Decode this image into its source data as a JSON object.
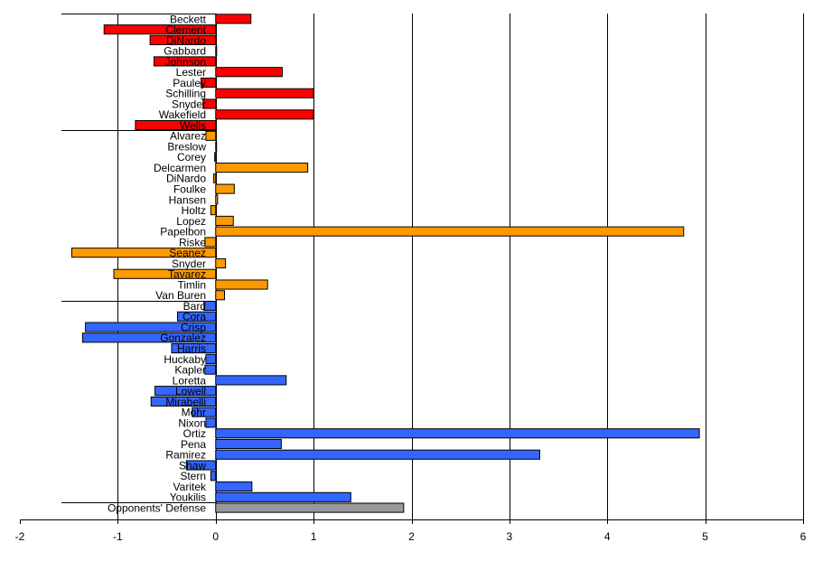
{
  "chart_data": {
    "type": "bar",
    "orientation": "horizontal",
    "title": "",
    "xlabel": "",
    "ylabel": "",
    "xlim": [
      -2,
      6
    ],
    "xticks": [
      -2,
      -1,
      0,
      1,
      2,
      3,
      4,
      5,
      6
    ],
    "grid": "vertical",
    "legend": "none",
    "colors": {
      "red": "#ff0000",
      "orange": "#ff9900",
      "blue": "#3366ff",
      "gray": "#999999"
    },
    "groups": [
      {
        "color": "red",
        "bars": [
          {
            "label": "Beckett",
            "value": 0.36
          },
          {
            "label": "Clement",
            "value": -1.14
          },
          {
            "label": "DiNardo",
            "value": -0.67
          },
          {
            "label": "Gabbard",
            "value": 0.01
          },
          {
            "label": "Johnson",
            "value": -0.63
          },
          {
            "label": "Lester",
            "value": 0.68
          },
          {
            "label": "Pauley",
            "value": -0.15
          },
          {
            "label": "Schilling",
            "value": 1.0
          },
          {
            "label": "Snyder",
            "value": -0.13
          },
          {
            "label": "Wakefield",
            "value": 1.0
          },
          {
            "label": "Wells",
            "value": -0.82
          }
        ]
      },
      {
        "color": "orange",
        "bars": [
          {
            "label": "Alvarez",
            "value": -0.1
          },
          {
            "label": "Breslow",
            "value": 0.0
          },
          {
            "label": "Corey",
            "value": -0.01
          },
          {
            "label": "Delcarmen",
            "value": 0.94
          },
          {
            "label": "DiNardo",
            "value": -0.02
          },
          {
            "label": "Foulke",
            "value": 0.19
          },
          {
            "label": "Hansen",
            "value": 0.02
          },
          {
            "label": "Holtz",
            "value": -0.05
          },
          {
            "label": "Lopez",
            "value": 0.18
          },
          {
            "label": "Papelbon",
            "value": 4.78
          },
          {
            "label": "Riske",
            "value": -0.11
          },
          {
            "label": "Seanez",
            "value": -1.47
          },
          {
            "label": "Snyder",
            "value": 0.1
          },
          {
            "label": "Tavarez",
            "value": -1.04
          },
          {
            "label": "Timlin",
            "value": 0.53
          },
          {
            "label": "Van Buren",
            "value": 0.09
          }
        ]
      },
      {
        "color": "blue",
        "bars": [
          {
            "label": "Bard",
            "value": -0.12
          },
          {
            "label": "Cora",
            "value": -0.39
          },
          {
            "label": "Crisp",
            "value": -1.33
          },
          {
            "label": "Gonzalez",
            "value": -1.36
          },
          {
            "label": "Harris",
            "value": -0.45
          },
          {
            "label": "Huckaby",
            "value": -0.1
          },
          {
            "label": "Kapler",
            "value": -0.11
          },
          {
            "label": "Loretta",
            "value": 0.72
          },
          {
            "label": "Lowell",
            "value": -0.62
          },
          {
            "label": "Mirabelli",
            "value": -0.66
          },
          {
            "label": "Mohr",
            "value": -0.24
          },
          {
            "label": "Nixon",
            "value": -0.1
          },
          {
            "label": "Ortiz",
            "value": 4.94
          },
          {
            "label": "Pena",
            "value": 0.67
          },
          {
            "label": "Ramirez",
            "value": 3.31
          },
          {
            "label": "Shaw",
            "value": -0.3
          },
          {
            "label": "Stern",
            "value": -0.05
          },
          {
            "label": "Varitek",
            "value": 0.37
          },
          {
            "label": "Youkilis",
            "value": 1.38
          }
        ]
      },
      {
        "color": "gray",
        "bars": [
          {
            "label": "Opponents' Defense",
            "value": 1.92
          }
        ]
      }
    ]
  }
}
